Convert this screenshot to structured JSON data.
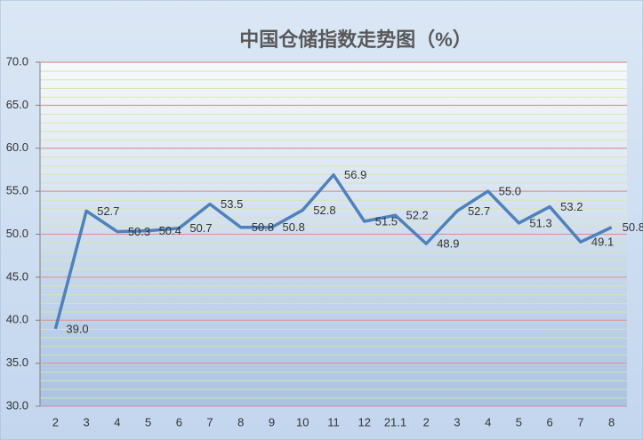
{
  "chart_data": {
    "type": "line",
    "title": "中国仓储指数走势图（%）",
    "categories": [
      "2",
      "3",
      "4",
      "5",
      "6",
      "7",
      "8",
      "9",
      "10",
      "11",
      "12",
      "21.1",
      "2",
      "3",
      "4",
      "5",
      "6",
      "7",
      "8"
    ],
    "series": [
      {
        "color": "#4f81bd",
        "values": [
          39.0,
          52.7,
          50.3,
          50.4,
          50.7,
          53.5,
          50.8,
          50.8,
          52.8,
          56.9,
          51.5,
          52.2,
          48.9,
          52.7,
          55.0,
          51.3,
          53.2,
          49.1,
          50.8
        ],
        "value_labels": [
          "39.0",
          "52.7",
          "50.3",
          "50.4",
          "50.7",
          "53.5",
          "50.8",
          "50.8",
          "52.8",
          "56.9",
          "51.5",
          "52.2",
          "48.9",
          "52.7",
          "55.0",
          "51.3",
          "53.2",
          "49.1",
          "50.8"
        ]
      }
    ],
    "ylim": [
      30,
      70
    ],
    "yticks": [
      {
        "value": 30,
        "label": "30.0"
      },
      {
        "value": 35,
        "label": "35.0"
      },
      {
        "value": 40,
        "label": "40.0"
      },
      {
        "value": 45,
        "label": "45.0"
      },
      {
        "value": 50,
        "label": "50.0"
      },
      {
        "value": 55,
        "label": "55.0"
      },
      {
        "value": 60,
        "label": "60.0"
      },
      {
        "value": 65,
        "label": "65.0"
      },
      {
        "value": 70,
        "label": "70.0"
      }
    ],
    "grid": true
  }
}
